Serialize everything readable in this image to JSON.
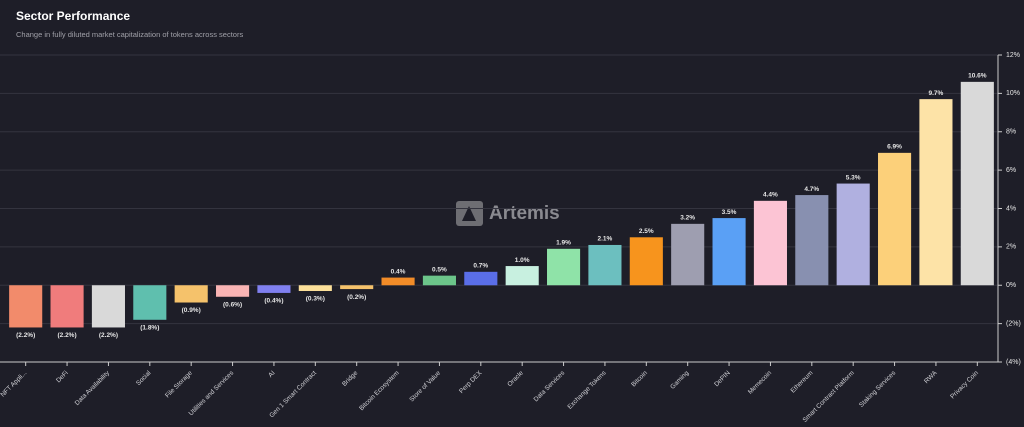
{
  "chart_data": {
    "type": "bar",
    "title": "Sector Performance",
    "subtitle": "Change in fully diluted market capitalization of tokens across sectors",
    "watermark": "Artemis",
    "categories": [
      "NFT Appli...",
      "DeFi",
      "Data Availability",
      "Social",
      "File Storage",
      "Utilities and Services",
      "AI",
      "Gen 1 Smart Contract",
      "Bridge",
      "Bitcoin Ecosystem",
      "Store of Value",
      "Perp DEX",
      "Oracle",
      "Data Services",
      "Exchange Tokens",
      "Bitcoin",
      "Gaming",
      "DePIN",
      "Memecoin",
      "Ethereum",
      "Smart Contract Platform",
      "Staking Services",
      "RWA",
      "Privacy Coin"
    ],
    "values": [
      -2.2,
      -2.2,
      -2.2,
      -1.8,
      -0.9,
      -0.6,
      -0.4,
      -0.3,
      -0.2,
      0.4,
      0.5,
      0.7,
      1.0,
      1.9,
      2.1,
      2.5,
      3.2,
      3.5,
      4.4,
      4.7,
      5.3,
      6.9,
      9.7,
      10.6
    ],
    "value_labels": [
      "(2.2%)",
      "(2.2%)",
      "(2.2%)",
      "(1.8%)",
      "(0.9%)",
      "(0.6%)",
      "(0.4%)",
      "(0.3%)",
      "(0.2%)",
      "0.4%",
      "0.5%",
      "0.7%",
      "1.0%",
      "1.9%",
      "2.1%",
      "2.5%",
      "3.2%",
      "3.5%",
      "4.4%",
      "4.7%",
      "5.3%",
      "6.9%",
      "9.7%",
      "10.6%"
    ],
    "colors": [
      "#f28b6b",
      "#f07c7c",
      "#d9d9d9",
      "#5fbfae",
      "#f5c26b",
      "#f9b4b4",
      "#8080f0",
      "#fce09a",
      "#f5c26b",
      "#f28c28",
      "#6cc58a",
      "#5a6ee8",
      "#c8f0e0",
      "#8fe3a8",
      "#6cbfbf",
      "#f7941d",
      "#9e9eb0",
      "#5aa0f5",
      "#fcc4d4",
      "#8890b0",
      "#b0b0e0",
      "#fcd07a",
      "#fde3a7",
      "#d9d9d9"
    ],
    "ylim": [
      -4,
      12
    ],
    "yticks": [
      {
        "value": -4,
        "label": "(4%)"
      },
      {
        "value": -2,
        "label": "(2%)"
      },
      {
        "value": 0,
        "label": "0%"
      },
      {
        "value": 2,
        "label": "2%"
      },
      {
        "value": 4,
        "label": "4%"
      },
      {
        "value": 6,
        "label": "6%"
      },
      {
        "value": 8,
        "label": "8%"
      },
      {
        "value": 10,
        "label": "10%"
      },
      {
        "value": 12,
        "label": "12%"
      }
    ],
    "grid": true
  }
}
